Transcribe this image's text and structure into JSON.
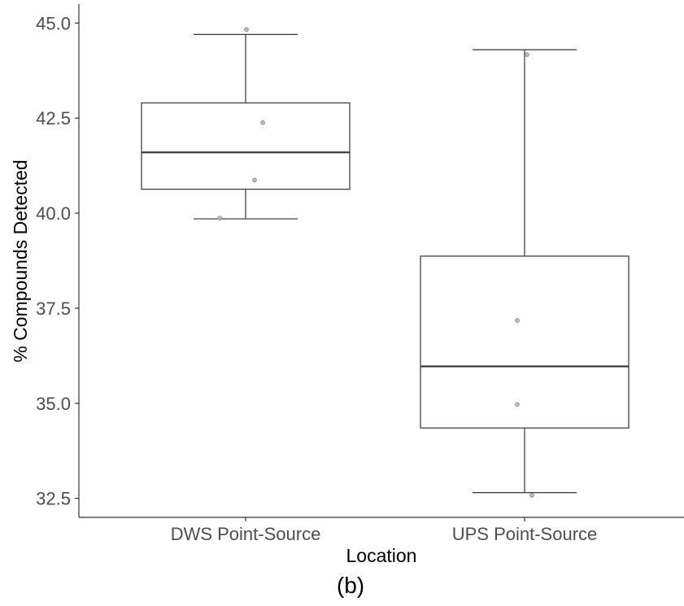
{
  "chart_data": {
    "type": "box",
    "title": "",
    "xlabel": "Location",
    "ylabel": "% Compounds Detected",
    "panel_label": "(b)",
    "ylim": [
      32.0,
      45.5
    ],
    "yticks": [
      32.5,
      35.0,
      37.5,
      40.0,
      42.5,
      45.0
    ],
    "ytick_labels": [
      "32.5",
      "35.0",
      "37.5",
      "40.0",
      "42.5",
      "45.0"
    ],
    "grid": false,
    "legend": "none",
    "colors": {
      "box_fill": "#ffffff",
      "box_stroke": "#333333",
      "median": "#333333",
      "point": "#bfbfbf",
      "point_stroke": "#7f7f7f",
      "axis": "#333333",
      "tick_text": "#4d4d4d"
    },
    "categories": [
      "DWS Point-Source",
      "UPS Point-Source"
    ],
    "boxes": [
      {
        "category": "DWS Point-Source",
        "whisker_low": 39.85,
        "q1": 40.63,
        "median": 41.6,
        "q3": 42.9,
        "whisker_high": 44.7,
        "points": [
          44.83,
          42.38,
          40.87,
          39.87
        ]
      },
      {
        "category": "UPS Point-Source",
        "whisker_low": 32.65,
        "q1": 34.35,
        "median": 35.97,
        "q3": 38.87,
        "whisker_high": 44.3,
        "points": [
          44.17,
          37.18,
          34.97,
          32.58
        ]
      }
    ]
  }
}
